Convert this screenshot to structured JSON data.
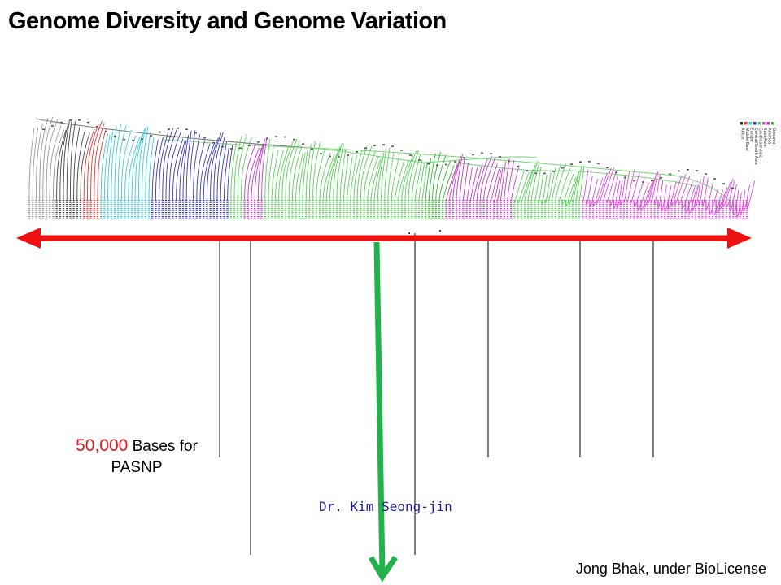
{
  "title": "Genome Diversity and Genome Variation",
  "caption": {
    "number": "50,000",
    "rest_line1": " Bases for",
    "line2": "PASNP"
  },
  "author": "Dr. Kim Seong-jin",
  "credit": "Jong Bhak, under BioLicense",
  "legend": [
    {
      "label": "Oceania",
      "color": "#2fb62f"
    },
    {
      "label": "America",
      "color": "#c03cc0"
    },
    {
      "label": "East-Asia",
      "color": "#d84ad8"
    },
    {
      "label": "Southeast Asia",
      "color": "#5ad05a"
    },
    {
      "label": "Central/South Asia",
      "color": "#3a3ab0"
    },
    {
      "label": "Europe",
      "color": "#3cc8d8"
    },
    {
      "label": "Middle East",
      "color": "#d83c3c"
    },
    {
      "label": "Africa",
      "color": "#333333"
    }
  ],
  "colors": {
    "arrow": "#ee1111",
    "green_arrow": "#22b24c"
  }
}
